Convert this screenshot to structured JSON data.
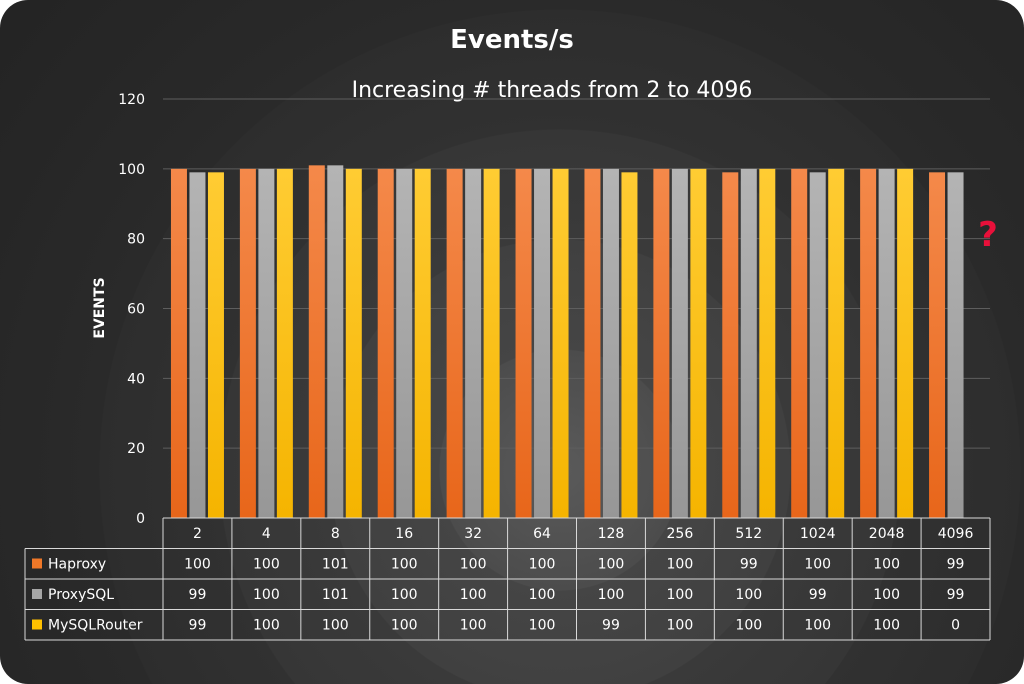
{
  "chart_data": {
    "type": "bar",
    "title": "Events/s",
    "subtitle": "Increasing # threads from 2 to 4096",
    "xlabel": "",
    "ylabel": "EVENTS",
    "ylim": [
      0,
      120
    ],
    "yticks": [
      0,
      20,
      40,
      60,
      80,
      100,
      120
    ],
    "grid": true,
    "legend_placement": "data table below chart",
    "categories": [
      "2",
      "4",
      "8",
      "16",
      "32",
      "64",
      "128",
      "256",
      "512",
      "1024",
      "2048",
      "4096"
    ],
    "series": [
      {
        "name": "Haproxy",
        "color": "#f07828",
        "values": [
          100,
          100,
          101,
          100,
          100,
          100,
          100,
          100,
          99,
          100,
          100,
          99
        ],
        "labels": [
          "100",
          "100",
          "101",
          "100",
          "100",
          "100",
          "100",
          "100",
          "99",
          "100",
          "100",
          "99"
        ]
      },
      {
        "name": "ProxySQL",
        "color": "#a6a6a6",
        "values": [
          99,
          100,
          101,
          100,
          100,
          100,
          100,
          100,
          100,
          99,
          100,
          99
        ],
        "labels": [
          "99",
          "100",
          "101",
          "100",
          "100",
          "100",
          "100",
          "100",
          "100",
          "99",
          "100",
          "99"
        ]
      },
      {
        "name": "MySQLRouter",
        "color": "#ffc000",
        "values": [
          99,
          100,
          100,
          100,
          100,
          100,
          99,
          100,
          100,
          100,
          100,
          0
        ],
        "labels": [
          "99",
          "100",
          "100",
          "100",
          "100",
          "100",
          "99",
          "100",
          "100",
          "100",
          "100",
          "0"
        ]
      }
    ],
    "annotations": [
      {
        "text": "?",
        "color": "#e8103a"
      }
    ]
  }
}
